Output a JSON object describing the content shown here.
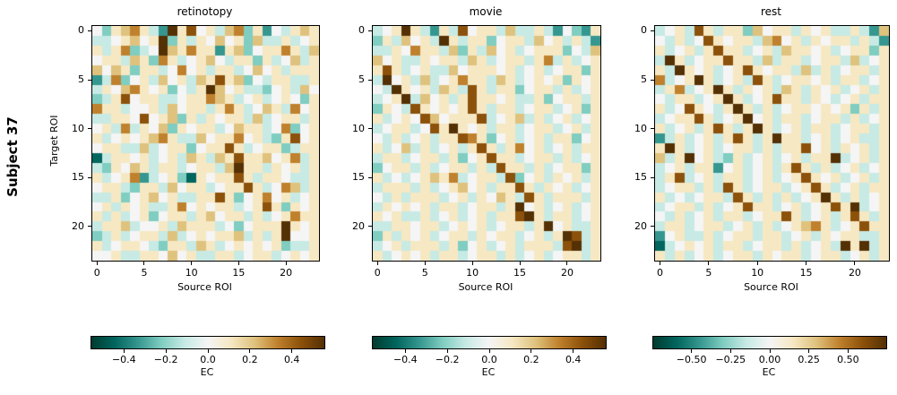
{
  "figure": {
    "subject_label": "Subject 37",
    "ylabel": "Target ROI",
    "background": "#ffffff",
    "axis_color": "#000000",
    "text_color": "#000000"
  },
  "palette": {
    "name": "BrBG_r",
    "colors": [
      "#003c30",
      "#01665e",
      "#35978f",
      "#80cdc1",
      "#c7eae5",
      "#f5f5f5",
      "#f6e8c3",
      "#dfc27d",
      "#bf812d",
      "#8c510a",
      "#543005"
    ]
  },
  "chart_data": [
    {
      "type": "heatmap",
      "title": "retinotopy",
      "xlabel": "Source ROI",
      "ylabel": "Target ROI",
      "n_rows": 24,
      "n_cols": 24,
      "x_ticks": [
        0,
        5,
        10,
        15,
        20
      ],
      "y_ticks": [
        0,
        5,
        10,
        15,
        20
      ],
      "colorbar": {
        "label": "EC",
        "vmin": -0.555,
        "vmax": 0.555,
        "tick_values": [
          -0.4,
          -0.2,
          0.0,
          0.2,
          0.4
        ],
        "tick_labels": [
          "−0.4",
          "−0.2",
          "0.0",
          "0.2",
          "0.4"
        ]
      },
      "level_values": [
        -0.55,
        -0.44,
        -0.33,
        -0.22,
        -0.11,
        0.0,
        0.11,
        0.22,
        0.33,
        0.44,
        0.55
      ],
      "rows": [
        "53678642a695647836254676",
        "4456756a3646575637446456",
        "6468345a7686626735668647",
        "566476386456754663645746",
        "757636645856466457564666",
        "248356475647696735466446",
        "465786563546a75644356475",
        "346956644566876456456536",
        "866455647566468645764856",
        "446659567364656647456646",
        "564846573656645766458356",
        "645656786447566856436956",
        "566447456635669645663466",
        "146656456476476966756846",
        "436576466456647a66465646",
        "645682456316566964665446",
        "566436647566456696458746",
        "446356756446696356856456",
        "564656446856566456963656",
        "646456356646756646456866",
        "46674556476664535666a656",
        "34645664745656674646a556",
        "645665436647645656563446",
        "556446657564466456645656"
      ]
    },
    {
      "type": "heatmap",
      "title": "movie",
      "xlabel": "Source ROI",
      "ylabel": "Target ROI",
      "n_rows": 24,
      "n_cols": 24,
      "x_ticks": [
        0,
        5,
        10,
        15,
        20
      ],
      "y_ticks": [
        0,
        5,
        10,
        15,
        20
      ],
      "colorbar": {
        "label": "EC",
        "vmin": -0.555,
        "vmax": 0.555,
        "tick_values": [
          -0.4,
          -0.2,
          0.0,
          0.2,
          0.4
        ],
        "tick_labels": [
          "−0.4",
          "−0.2",
          "0.0",
          "0.2",
          "0.4"
        ]
      },
      "level_values": [
        -0.55,
        -0.44,
        -0.33,
        -0.22,
        -0.11,
        0.0,
        0.11,
        0.22,
        0.33,
        0.44,
        0.55
      ],
      "rows": [
        "456a64264956647446425326",
        "3647564a6466356647564642",
        "446586647364756456663547",
        "756446566476456646846456",
        "696456447566656456456636",
        "4a5647456866476456563656",
        "54a656476496466356646456",
        "456a47564696656446356646",
        "365496565696466456645636",
        "645659756669456746456456",
        "45664596a656466456645646",
        "546456466986356456466356",
        "645746456469646856456466",
        "466456646356966456646456",
        "356646456646496646456636",
        "645456768456649356465646",
        "466646456756466964656456",
        "546466645646576496466646",
        "465656466456646a56456456",
        "6564464564564669a6466456",
        "446656645656456646a56446",
        "36465645664656645646a946",
        "456466646356456466649a46",
        "645656466456646456456646"
      ]
    },
    {
      "type": "heatmap",
      "title": "rest",
      "xlabel": "Source ROI",
      "ylabel": "Target ROI",
      "n_rows": 24,
      "n_cols": 24,
      "x_ticks": [
        0,
        5,
        10,
        15,
        20
      ],
      "y_ticks": [
        0,
        5,
        10,
        15,
        20
      ],
      "colorbar": {
        "label": "EC",
        "vmin": -0.744,
        "vmax": 0.744,
        "tick_values": [
          -0.5,
          -0.25,
          0.0,
          0.25,
          0.5
        ],
        "tick_labels": [
          "−0.50",
          "−0.25",
          "0.00",
          "0.25",
          "0.50"
        ]
      },
      "level_values": [
        -0.74,
        -0.59,
        -0.44,
        -0.3,
        -0.15,
        0.0,
        0.15,
        0.3,
        0.44,
        0.59,
        0.74
      ],
      "rows": [
        "456496466375664656446427",
        "546459656647856465664642",
        "645646966456476656456636",
        "4a6456696647466456647456",
        "64a656456965664746456646",
        "8456a6456496456656466456",
        "468456a64656476465645646",
        "5466456a6456966465456466",
        "64596546a646456656563646",
        "456696456a56466456646456",
        "6456469646a6456466456646",
        "246456469646a66456456446",
        "6a6456456646466956465646",
        "746a56436456456466a45646",
        "456466256456469646456456",
        "469456466456456965645646",
        "456646496456645696456466",
        "64545664964646456a646456",
        "45664645696645645696a456",
        "546456466456696456469646",
        "466456645646456786456966",
        "256446456646645646566446",
        "1456564664566464564a6a46",
        "646456456646566456645646"
      ]
    }
  ]
}
